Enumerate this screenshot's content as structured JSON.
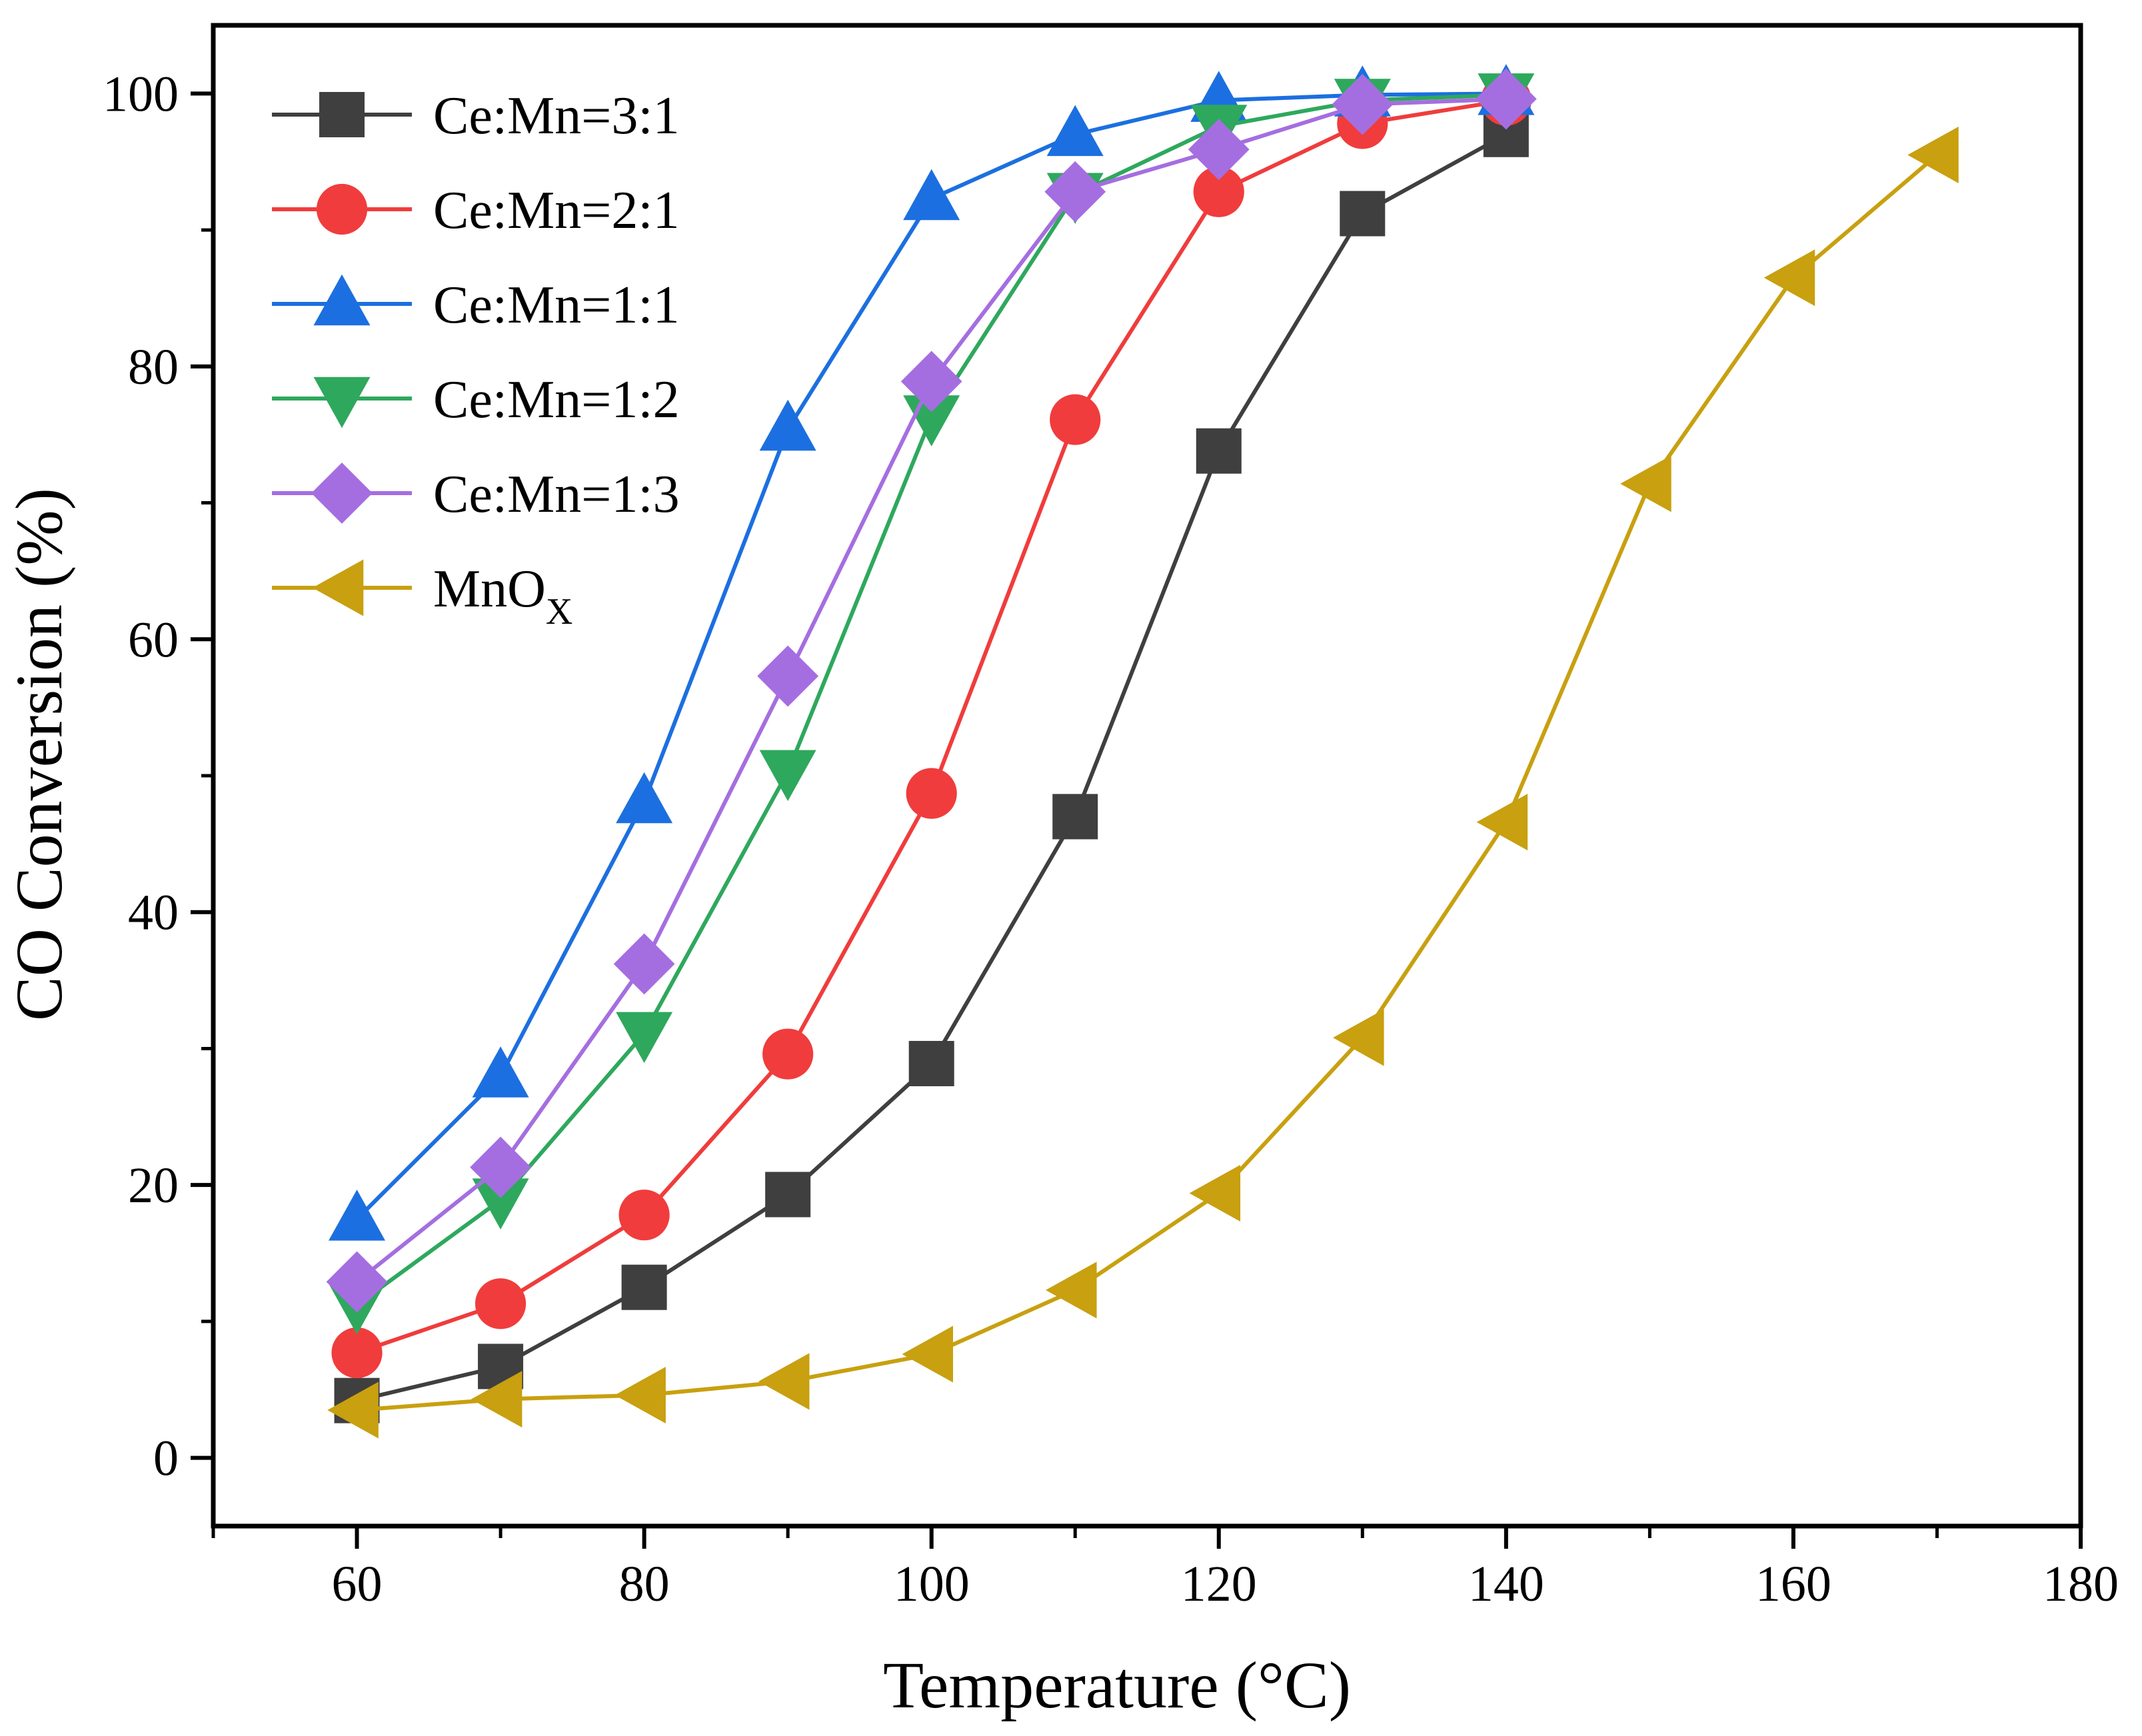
{
  "chart_data": {
    "type": "line",
    "title": "",
    "xlabel": "Temperature (°C)",
    "ylabel": "CO Conversion (%)",
    "xlim": [
      50,
      180
    ],
    "ylim": [
      -5,
      105
    ],
    "xticks": [
      60,
      80,
      100,
      120,
      140,
      160,
      180
    ],
    "yticks": [
      0,
      20,
      40,
      60,
      80,
      100
    ],
    "grid": false,
    "legend_position": "top-left",
    "series": [
      {
        "name": "Ce:Mn=3:1",
        "color": "#3f3f3f",
        "marker": "square",
        "x": [
          60,
          70,
          80,
          90,
          100,
          110,
          120,
          130,
          140
        ],
        "values": [
          4.2,
          6.7,
          12.5,
          19.3,
          28.9,
          47.0,
          73.8,
          91.2,
          97.0
        ]
      },
      {
        "name": "Ce:Mn=2:1",
        "color": "#f03c3c",
        "marker": "circle",
        "x": [
          60,
          70,
          80,
          90,
          100,
          110,
          120,
          130,
          140
        ],
        "values": [
          7.7,
          11.3,
          17.8,
          29.6,
          48.7,
          76.1,
          92.8,
          97.8,
          99.5
        ]
      },
      {
        "name": "Ce:Mn=1:1",
        "color": "#1c6fe0",
        "marker": "triangle-up",
        "x": [
          60,
          70,
          80,
          90,
          100,
          110,
          120,
          130,
          140
        ],
        "values": [
          17.5,
          28.0,
          48.1,
          75.4,
          92.3,
          97.0,
          99.5,
          99.9,
          100.0
        ]
      },
      {
        "name": "Ce:Mn=1:2",
        "color": "#2ea85d",
        "marker": "triangle-down",
        "x": [
          60,
          70,
          80,
          90,
          100,
          110,
          120,
          130,
          140
        ],
        "values": [
          11.2,
          18.9,
          31.1,
          50.3,
          76.3,
          92.6,
          97.6,
          99.5,
          99.9
        ]
      },
      {
        "name": "Ce:Mn=1:3",
        "color": "#a56ee0",
        "marker": "diamond",
        "x": [
          60,
          70,
          80,
          90,
          100,
          110,
          120,
          130,
          140
        ],
        "values": [
          12.9,
          21.3,
          36.2,
          57.3,
          78.9,
          92.8,
          95.9,
          99.2,
          99.6
        ]
      },
      {
        "name": "MnOX",
        "name_base": "MnO",
        "name_sub": "X",
        "color": "#c8a010",
        "marker": "triangle-left",
        "x": [
          60,
          70,
          80,
          90,
          100,
          110,
          120,
          130,
          140,
          150,
          160,
          170
        ],
        "values": [
          3.5,
          4.3,
          4.6,
          5.6,
          7.6,
          12.3,
          19.4,
          30.8,
          46.6,
          71.4,
          86.5,
          95.5
        ]
      }
    ]
  }
}
